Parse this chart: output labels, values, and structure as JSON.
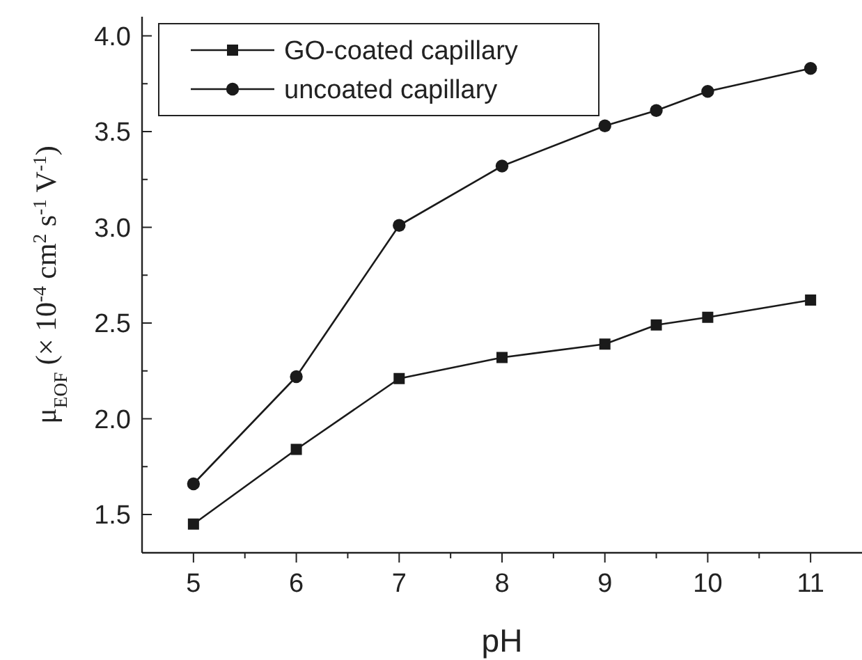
{
  "chart_data": {
    "type": "line",
    "xlabel": "pH",
    "ylabel": "μ$_{EOF}$ (× 10$^{-4}$ cm$^{2}$ s$^{-1}$ V$^{-1}$)",
    "x": [
      5,
      6,
      7,
      8,
      9,
      9.5,
      10,
      11
    ],
    "series": [
      {
        "name": "GO-coated capillary",
        "color": "#1a1a1a",
        "marker": "square",
        "values": [
          1.45,
          1.84,
          2.21,
          2.32,
          2.39,
          2.49,
          2.53,
          2.62
        ]
      },
      {
        "name": "uncoated capillary",
        "color": "#1a1a1a",
        "marker": "circle",
        "values": [
          1.66,
          2.22,
          3.01,
          3.32,
          3.53,
          3.61,
          3.71,
          3.83
        ]
      }
    ],
    "xlim": [
      4.5,
      11.5
    ],
    "ylim": [
      1.3,
      4.1
    ],
    "xticks": [
      5,
      {
        "value": 5.5,
        "label": null
      },
      6,
      {
        "value": 6.5,
        "label": null
      },
      7,
      {
        "value": 7.5,
        "label": null
      },
      8,
      {
        "value": 8.5,
        "label": null
      },
      9,
      {
        "value": 9.5,
        "label": null
      },
      10,
      {
        "value": 10.5,
        "label": null
      },
      11
    ],
    "yticks": [
      1.5,
      {
        "value": 1.75,
        "label": null
      },
      {
        "value": 2,
        "label": "2.0"
      },
      {
        "value": 2.25,
        "label": null
      },
      2.5,
      {
        "value": 2.75,
        "label": null
      },
      {
        "value": 3,
        "label": "3.0"
      },
      {
        "value": 3.25,
        "label": null
      },
      3.5,
      {
        "value": 3.75,
        "label": null
      },
      {
        "value": 4,
        "label": "4.0"
      }
    ],
    "legend": "top left",
    "grid": false,
    "line_style": "solid"
  }
}
